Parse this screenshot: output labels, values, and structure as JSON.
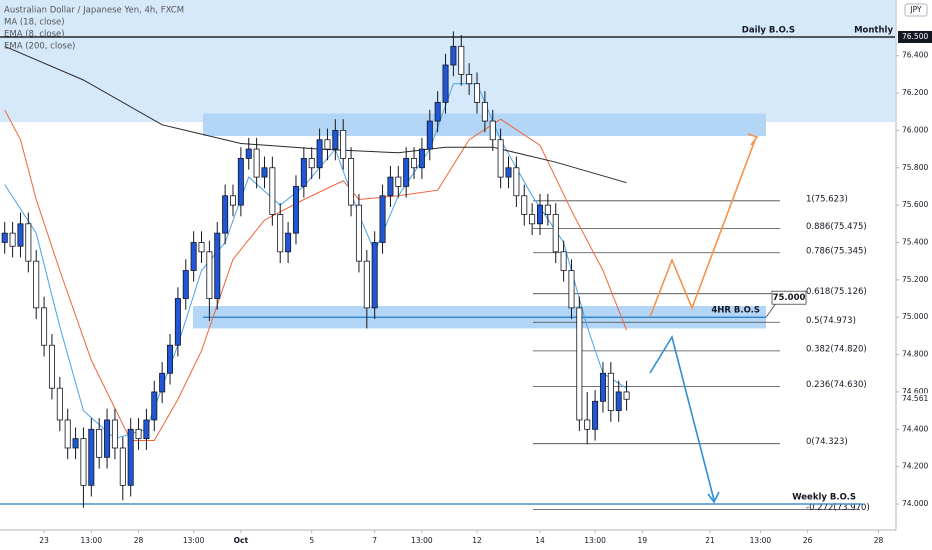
{
  "chart_data": {
    "type": "candlestick",
    "title": "Australian Dollar / Japanese Yen, 4h, FXCM",
    "currency": "JPY",
    "up_color": "#2157d6",
    "down_color": "#ffffff",
    "xlim": [
      -0.6,
      113.1
    ],
    "ylim": [
      73.861,
      76.698
    ],
    "xticks": [
      {
        "value": 5,
        "label": "23"
      },
      {
        "value": 11,
        "label": "13:00"
      },
      {
        "value": 17,
        "label": "28"
      },
      {
        "value": 24,
        "label": "13:00"
      },
      {
        "value": 30,
        "label": "Oct"
      },
      {
        "value": 39,
        "label": "5"
      },
      {
        "value": 47,
        "label": "7"
      },
      {
        "value": 53,
        "label": "13:00"
      },
      {
        "value": 60,
        "label": "12"
      },
      {
        "value": 68,
        "label": "14"
      },
      {
        "value": 75,
        "label": "13:00"
      },
      {
        "value": 81,
        "label": "19"
      },
      {
        "value": 89.6,
        "label": "21"
      },
      {
        "value": 96,
        "label": "13:00"
      },
      {
        "value": 102,
        "label": "26"
      },
      {
        "value": 111,
        "label": "28"
      }
    ],
    "yticks": [
      {
        "value": 74.0,
        "label": "74.000"
      },
      {
        "value": 74.2,
        "label": "74.200"
      },
      {
        "value": 74.4,
        "label": "74.400"
      },
      {
        "value": 74.6,
        "label": "74.600"
      },
      {
        "value": 74.8,
        "label": "74.800"
      },
      {
        "value": 75.0,
        "label": "75.000"
      },
      {
        "value": 75.2,
        "label": "75.200"
      },
      {
        "value": 75.4,
        "label": "75.400"
      },
      {
        "value": 75.6,
        "label": "75.600"
      },
      {
        "value": 75.8,
        "label": "75.800"
      },
      {
        "value": 76.0,
        "label": "76.000"
      },
      {
        "value": 76.2,
        "label": "76.200"
      },
      {
        "value": 76.4,
        "label": "76.400"
      }
    ],
    "candles": [
      [
        75.4,
        75.51,
        75.34,
        75.45
      ],
      [
        75.45,
        75.51,
        75.32,
        75.38
      ],
      [
        75.38,
        75.56,
        75.32,
        75.5
      ],
      [
        75.5,
        75.56,
        75.24,
        75.3
      ],
      [
        75.3,
        75.36,
        74.99,
        75.05
      ],
      [
        75.05,
        75.11,
        74.79,
        74.85
      ],
      [
        74.85,
        74.91,
        74.56,
        74.62
      ],
      [
        74.62,
        74.68,
        74.39,
        74.45
      ],
      [
        74.45,
        74.51,
        74.24,
        74.3
      ],
      [
        74.3,
        74.41,
        74.24,
        74.35
      ],
      [
        74.35,
        74.41,
        73.98,
        74.1
      ],
      [
        74.1,
        74.46,
        74.04,
        74.4
      ],
      [
        74.4,
        74.46,
        74.19,
        74.25
      ],
      [
        74.25,
        74.51,
        74.19,
        74.45
      ],
      [
        74.45,
        74.51,
        74.24,
        74.3
      ],
      [
        74.3,
        74.36,
        74.02,
        74.1
      ],
      [
        74.1,
        74.46,
        74.04,
        74.4
      ],
      [
        74.4,
        74.46,
        74.29,
        74.35
      ],
      [
        74.35,
        74.51,
        74.29,
        74.45
      ],
      [
        74.45,
        74.66,
        74.39,
        74.6
      ],
      [
        74.6,
        74.76,
        74.54,
        74.7
      ],
      [
        74.7,
        74.91,
        74.64,
        74.85
      ],
      [
        74.85,
        75.16,
        74.79,
        75.1
      ],
      [
        75.1,
        75.31,
        75.04,
        75.25
      ],
      [
        75.25,
        75.46,
        75.19,
        75.4
      ],
      [
        75.4,
        75.46,
        75.29,
        75.35
      ],
      [
        75.35,
        75.41,
        74.98,
        75.1
      ],
      [
        75.1,
        75.51,
        75.04,
        75.45
      ],
      [
        75.45,
        75.71,
        75.39,
        75.65
      ],
      [
        75.65,
        75.71,
        75.54,
        75.6
      ],
      [
        75.6,
        75.91,
        75.54,
        75.85
      ],
      [
        75.85,
        75.96,
        75.79,
        75.9
      ],
      [
        75.9,
        75.96,
        75.69,
        75.75
      ],
      [
        75.75,
        75.86,
        75.69,
        75.8
      ],
      [
        75.8,
        75.86,
        75.49,
        75.55
      ],
      [
        75.55,
        75.61,
        75.29,
        75.35
      ],
      [
        75.35,
        75.51,
        75.29,
        75.45
      ],
      [
        75.45,
        75.76,
        75.39,
        75.7
      ],
      [
        75.7,
        75.91,
        75.64,
        75.85
      ],
      [
        75.85,
        75.91,
        75.74,
        75.8
      ],
      [
        75.8,
        76.01,
        75.74,
        75.95
      ],
      [
        75.95,
        76.01,
        75.84,
        75.9
      ],
      [
        75.9,
        76.06,
        75.84,
        76.0
      ],
      [
        76.0,
        76.06,
        75.79,
        75.85
      ],
      [
        75.85,
        75.91,
        75.54,
        75.6
      ],
      [
        75.6,
        75.66,
        75.24,
        75.3
      ],
      [
        75.3,
        75.36,
        74.94,
        75.05
      ],
      [
        75.05,
        75.46,
        74.99,
        75.4
      ],
      [
        75.4,
        75.71,
        75.34,
        75.65
      ],
      [
        75.65,
        75.81,
        75.59,
        75.75
      ],
      [
        75.75,
        75.81,
        75.64,
        75.7
      ],
      [
        75.7,
        75.91,
        75.64,
        75.85
      ],
      [
        75.85,
        75.91,
        75.74,
        75.8
      ],
      [
        75.8,
        75.96,
        75.74,
        75.9
      ],
      [
        75.9,
        76.11,
        75.84,
        76.05
      ],
      [
        76.05,
        76.21,
        75.99,
        76.15
      ],
      [
        76.15,
        76.41,
        76.09,
        76.35
      ],
      [
        76.35,
        76.53,
        76.29,
        76.45
      ],
      [
        76.45,
        76.51,
        76.24,
        76.3
      ],
      [
        76.3,
        76.36,
        76.19,
        76.25
      ],
      [
        76.25,
        76.31,
        76.09,
        76.15
      ],
      [
        76.15,
        76.21,
        75.99,
        76.05
      ],
      [
        76.05,
        76.11,
        75.89,
        75.95
      ],
      [
        75.95,
        76.01,
        75.69,
        75.75
      ],
      [
        75.75,
        75.86,
        75.69,
        75.8
      ],
      [
        75.8,
        75.86,
        75.59,
        75.65
      ],
      [
        75.65,
        75.71,
        75.49,
        75.55
      ],
      [
        75.55,
        75.61,
        75.44,
        75.5
      ],
      [
        75.5,
        75.66,
        75.44,
        75.6
      ],
      [
        75.6,
        75.66,
        75.49,
        75.55
      ],
      [
        75.55,
        75.61,
        75.29,
        75.35
      ],
      [
        75.35,
        75.41,
        75.19,
        75.25
      ],
      [
        75.25,
        75.31,
        74.99,
        75.05
      ],
      [
        75.05,
        75.11,
        74.39,
        74.45
      ],
      [
        74.45,
        74.6,
        74.32,
        74.4
      ],
      [
        74.4,
        74.61,
        74.34,
        74.55
      ],
      [
        74.55,
        74.76,
        74.49,
        74.7
      ],
      [
        74.7,
        74.76,
        74.44,
        74.5
      ],
      [
        74.5,
        74.66,
        74.44,
        74.6
      ],
      [
        74.6,
        74.66,
        74.5,
        74.561
      ]
    ],
    "series": [
      {
        "name": "MA (18, close)",
        "color": "#f0643c",
        "x": [
          0,
          2,
          4,
          7,
          11,
          16,
          19,
          22,
          25,
          29,
          33,
          38,
          43,
          45,
          50,
          55,
          59,
          63,
          68,
          72,
          76,
          79
        ],
        "values": [
          76.11,
          75.95,
          75.63,
          75.25,
          74.77,
          74.34,
          74.34,
          74.56,
          74.82,
          75.31,
          75.52,
          75.63,
          75.73,
          75.63,
          75.65,
          75.68,
          75.95,
          76.06,
          75.92,
          75.57,
          75.25,
          74.93
        ]
      },
      {
        "name": "EMA (8, close)",
        "color": "#4aa3e8",
        "x": [
          0,
          4,
          7,
          10,
          14,
          18,
          22,
          25,
          28,
          31,
          35,
          38,
          42,
          45,
          47,
          50,
          54,
          57,
          60,
          63,
          67,
          71,
          74,
          76,
          79
        ],
        "values": [
          75.71,
          75.45,
          74.95,
          74.5,
          74.35,
          74.4,
          74.85,
          75.25,
          75.4,
          75.75,
          75.6,
          75.7,
          75.9,
          75.55,
          75.35,
          75.65,
          75.9,
          76.25,
          76.25,
          75.95,
          75.65,
          75.4,
          74.95,
          74.7,
          74.62
        ]
      },
      {
        "name": "EMA (200, close)",
        "color": "#2a2a2a",
        "x": [
          0,
          10,
          20,
          30,
          40,
          50,
          56,
          62,
          70,
          79
        ],
        "values": [
          76.45,
          76.27,
          76.03,
          75.93,
          75.9,
          75.88,
          75.91,
          75.91,
          75.83,
          75.72
        ]
      }
    ],
    "zones": [
      {
        "range": [
          76.045,
          76.698
        ],
        "color": "#d5e9fb"
      },
      {
        "range": [
          75.97,
          76.09
        ],
        "color": "#b3d6f6"
      },
      {
        "range": [
          74.94,
          75.06
        ],
        "color": "#b3d6f6"
      }
    ],
    "bos": [
      {
        "name": "Daily B.O.S",
        "value": 76.5,
        "value_label": "76.500",
        "timeframe_label": "Monthly",
        "color": "#000000"
      },
      {
        "name": "4HR B.O.S",
        "value": 75.0,
        "value_label": "75.000",
        "color": "#1f78c8"
      },
      {
        "name": "Weekly B.O.S",
        "value": 74.0,
        "color": "#1f78c8"
      }
    ],
    "fib_levels": [
      {
        "value": 75.623,
        "label": "1(75.623)"
      },
      {
        "value": 75.475,
        "label": "0.886(75.475)"
      },
      {
        "value": 75.345,
        "label": "0.786(75.345)"
      },
      {
        "value": 75.126,
        "label": "0.618(75.126)"
      },
      {
        "value": 74.973,
        "label": "0.5(74.973)"
      },
      {
        "value": 74.82,
        "label": "0.382(74.820)"
      },
      {
        "value": 74.63,
        "label": "0.236(74.630)"
      },
      {
        "value": 74.323,
        "label": "0(74.323)"
      },
      {
        "value": 73.97,
        "label": "-0.272(73.970)"
      }
    ]
  }
}
